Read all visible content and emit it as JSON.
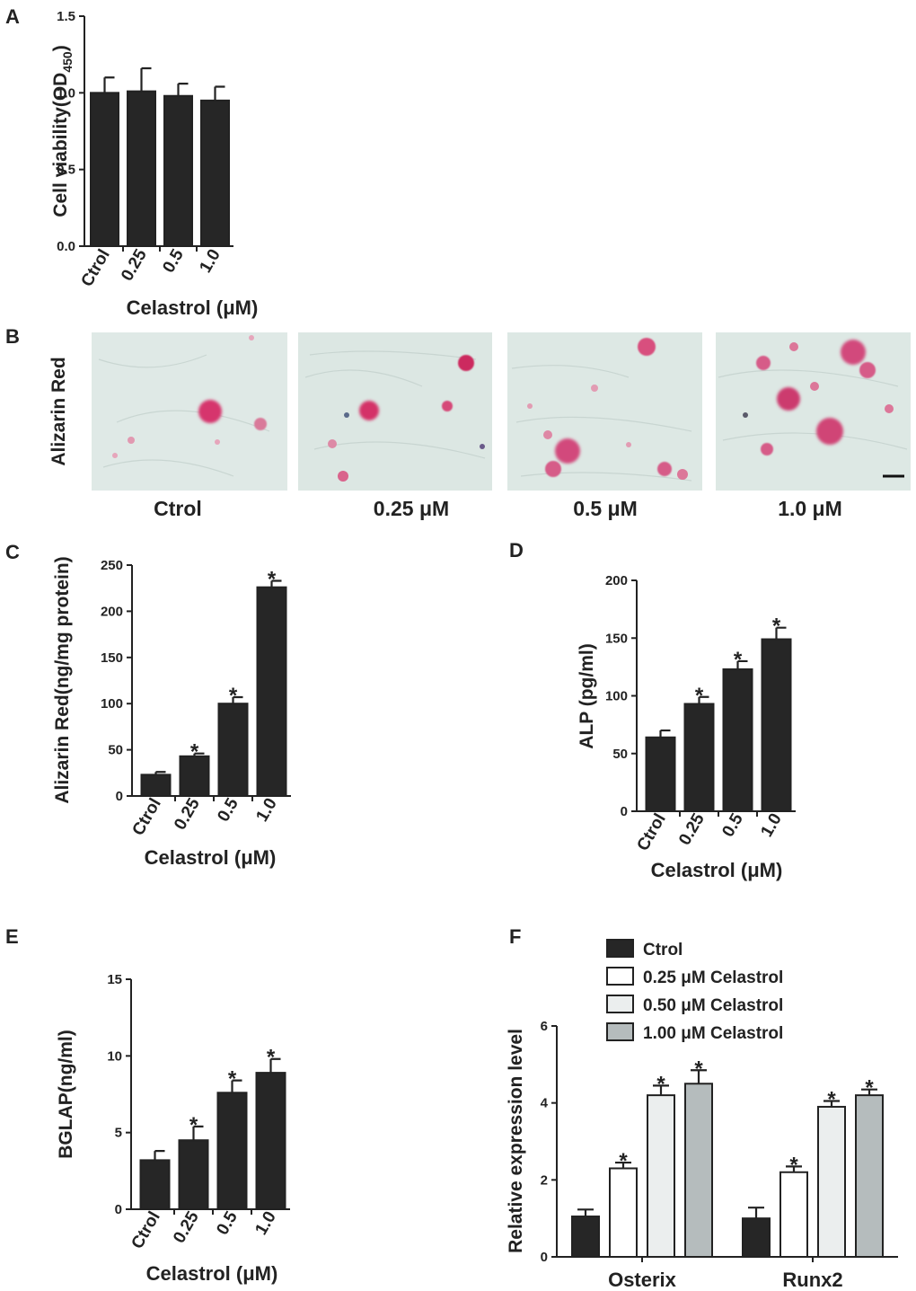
{
  "panel_labels": [
    "A",
    "B",
    "C",
    "D",
    "E",
    "F"
  ],
  "colors": {
    "bar_dark": "#262626",
    "bar_white": "#ffffff",
    "bar_light": "#ebeeee",
    "bar_grey": "#b5bcbd",
    "stain_bg": "#dfe9e6",
    "stain_red": "#d6356d"
  },
  "micrographs": {
    "row_label": "Alizarin Red",
    "labels": [
      "Ctrol",
      "0.25 μM",
      "0.5 μM",
      "1.0 μM"
    ]
  },
  "chart_data": [
    {
      "panel": "A",
      "type": "bar",
      "categories": [
        "Ctrol",
        "0.25",
        "0.5",
        "1.0"
      ],
      "values": [
        1.0,
        1.01,
        0.98,
        0.95
      ],
      "errors": [
        0.1,
        0.15,
        0.08,
        0.09
      ],
      "significant": [
        false,
        false,
        false,
        false
      ],
      "ylabel": "Cell viability(OD450)",
      "ylabel_main": "Cell viability(OD",
      "ylabel_sub": "450",
      "ylabel_end": ")",
      "xlabel": "Celastrol (μM)",
      "ylim": [
        0,
        1.5
      ],
      "yticks": [
        0,
        0.5,
        1,
        1.5
      ],
      "ytick_labels": [
        "0.0",
        "0.5",
        "1.0",
        "1.5"
      ]
    },
    {
      "panel": "C",
      "type": "bar",
      "categories": [
        "Ctrol",
        "0.25",
        "0.5",
        "1.0"
      ],
      "values": [
        23,
        43,
        100,
        226
      ],
      "errors": [
        3,
        3,
        7,
        7
      ],
      "significant": [
        false,
        true,
        true,
        true
      ],
      "ylabel": "Alizarin Red(ng/mg protein)",
      "xlabel": "Celastrol (μM)",
      "ylim": [
        0,
        250
      ],
      "yticks": [
        0,
        50,
        100,
        150,
        200,
        250
      ],
      "ytick_labels": [
        "0",
        "50",
        "100",
        "150",
        "200",
        "250"
      ]
    },
    {
      "panel": "D",
      "type": "bar",
      "categories": [
        "Ctrol",
        "0.25",
        "0.5",
        "1.0"
      ],
      "values": [
        64,
        93,
        123,
        149
      ],
      "errors": [
        6,
        6,
        7,
        10
      ],
      "significant": [
        false,
        true,
        true,
        true
      ],
      "ylabel": "ALP (pg/ml)",
      "xlabel": "Celastrol (μM)",
      "ylim": [
        0,
        200
      ],
      "yticks": [
        0,
        50,
        100,
        150,
        200
      ],
      "ytick_labels": [
        "0",
        "50",
        "100",
        "150",
        "200"
      ]
    },
    {
      "panel": "E",
      "type": "bar",
      "categories": [
        "Ctrol",
        "0.25",
        "0.5",
        "1.0"
      ],
      "values": [
        3.2,
        4.5,
        7.6,
        8.9
      ],
      "errors": [
        0.6,
        0.9,
        0.8,
        0.9
      ],
      "significant": [
        false,
        true,
        true,
        true
      ],
      "ylabel": "BGLAP(ng/ml)",
      "xlabel": "Celastrol (μM)",
      "ylim": [
        0,
        15
      ],
      "yticks": [
        0,
        5,
        10,
        15
      ],
      "ytick_labels": [
        "0",
        "5",
        "10",
        "15"
      ]
    },
    {
      "panel": "F",
      "type": "bar",
      "categories": [
        "Osterix",
        "Runx2"
      ],
      "series": [
        {
          "name": "Ctrol",
          "values": [
            1.05,
            1.0
          ],
          "errors": [
            0.18,
            0.28
          ],
          "significant": [
            false,
            false
          ]
        },
        {
          "name": "0.25 μM Celastrol",
          "values": [
            2.3,
            2.2
          ],
          "errors": [
            0.15,
            0.15
          ],
          "significant": [
            true,
            true
          ]
        },
        {
          "name": "0.50 μM Celastrol",
          "values": [
            4.2,
            3.9
          ],
          "errors": [
            0.25,
            0.15
          ],
          "significant": [
            true,
            true
          ]
        },
        {
          "name": "1.00 μM Celastrol",
          "values": [
            4.5,
            4.2
          ],
          "errors": [
            0.35,
            0.15
          ],
          "significant": [
            true,
            true
          ]
        }
      ],
      "ylabel": "Relative expression level",
      "ylim": [
        0,
        6
      ],
      "yticks": [
        0,
        2,
        4,
        6
      ],
      "ytick_labels": [
        "0",
        "2",
        "4",
        "6"
      ]
    }
  ]
}
